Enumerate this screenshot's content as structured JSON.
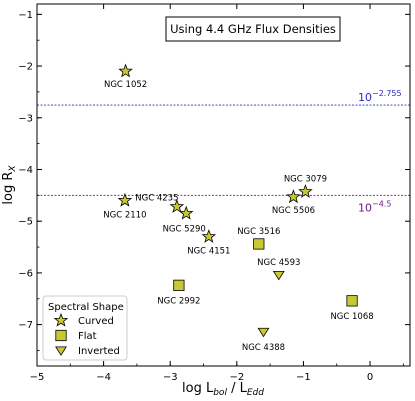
{
  "chart_data": {
    "type": "scatter",
    "title": "Using 4.4 GHz Flux Densities",
    "xlabel": "log L_bol / L_Edd",
    "ylabel": "log R_X",
    "xlim": [
      -5,
      0.6
    ],
    "ylim": [
      -7.8,
      -0.8
    ],
    "x_ticks": [
      -5,
      -4,
      -3,
      -2,
      -1,
      0
    ],
    "y_ticks": [
      -7,
      -6,
      -5,
      -4,
      -3,
      -2,
      -1
    ],
    "grid": false,
    "legend": {
      "title": "Spectral Shape",
      "position": "bottom-left",
      "entries": [
        {
          "name": "Curved",
          "marker": "star"
        },
        {
          "name": "Flat",
          "marker": "square"
        },
        {
          "name": "Inverted",
          "marker": "triangle-down"
        }
      ]
    },
    "hlines": [
      {
        "y": -2.755,
        "label_base": "10",
        "label_exp": "−2.755",
        "color": "#2a2ad0"
      },
      {
        "y": -4.5,
        "label_base": "10",
        "label_exp": "−4.5",
        "color": "#6a1a8a"
      }
    ],
    "marker_color": "#c8c832",
    "series": [
      {
        "name": "Curved",
        "marker": "star",
        "points": [
          {
            "label": "NGC 1052",
            "x": -3.67,
            "y": -2.1
          },
          {
            "label": "NGC 2110",
            "x": -3.68,
            "y": -4.6
          },
          {
            "label": "NGC 4235",
            "x": -2.9,
            "y": -4.72
          },
          {
            "label": "NGC 5290",
            "x": -2.76,
            "y": -4.85
          },
          {
            "label": "NGC 4151",
            "x": -2.42,
            "y": -5.3
          },
          {
            "label": "NGC 5506",
            "x": -1.15,
            "y": -4.53
          },
          {
            "label": "NGC 3079",
            "x": -0.97,
            "y": -4.43
          }
        ]
      },
      {
        "name": "Flat",
        "marker": "square",
        "points": [
          {
            "label": "NGC 3516",
            "x": -1.67,
            "y": -5.44
          },
          {
            "label": "NGC 2992",
            "x": -2.87,
            "y": -6.24
          },
          {
            "label": "NGC 1068",
            "x": -0.27,
            "y": -6.54
          }
        ]
      },
      {
        "name": "Inverted",
        "marker": "triangle-down",
        "points": [
          {
            "label": "NGC 4593",
            "x": -1.37,
            "y": -6.04
          },
          {
            "label": "NGC 4388",
            "x": -1.6,
            "y": -7.14
          }
        ]
      }
    ]
  }
}
